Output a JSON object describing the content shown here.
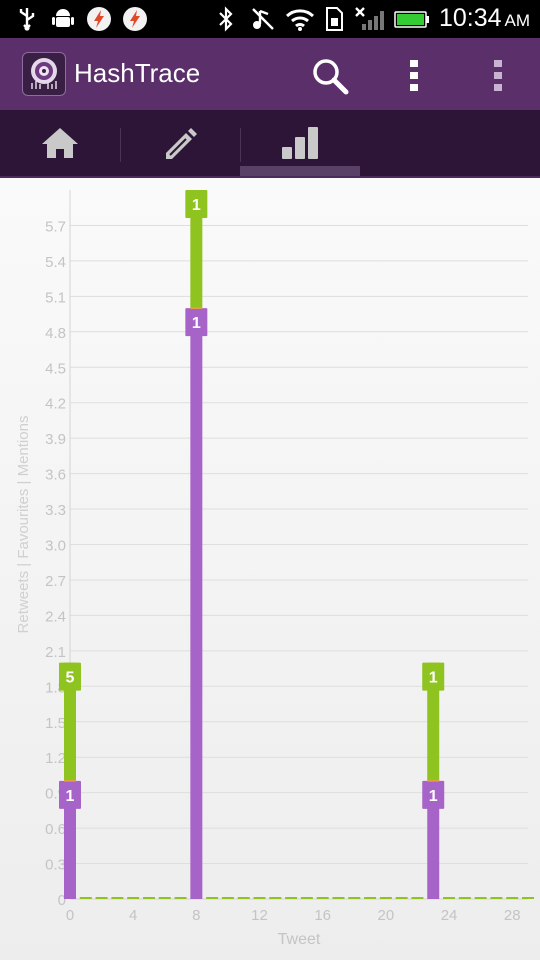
{
  "status_bar": {
    "time": "10:34",
    "ampm": "AM",
    "icons": [
      "usb-icon",
      "android-debug-icon",
      "flash-icon",
      "flash-icon",
      "bluetooth-icon",
      "mute-icon",
      "wifi-icon",
      "sim-icon",
      "signal-icon",
      "battery-icon"
    ]
  },
  "app_bar": {
    "title": "HashTrace",
    "actions": [
      "search-icon",
      "overflow-menu-icon",
      "overflow-menu-icon"
    ]
  },
  "tabs": [
    {
      "icon": "home-icon",
      "selected": false
    },
    {
      "icon": "edit-icon",
      "selected": false
    },
    {
      "icon": "bar-chart-icon",
      "selected": true
    }
  ],
  "colors": {
    "purple": "#a764c8",
    "green": "#8fc31f",
    "bar_text": "#ffffff",
    "axis_text": "#c4c4c4"
  },
  "chart_data": {
    "type": "bar",
    "stacked": true,
    "xlabel": "Tweet",
    "ylabel": "Retweets | Favourites | Mentions",
    "xlim": [
      0,
      29
    ],
    "ylim": [
      0,
      6
    ],
    "x_ticks": [
      "0",
      "4",
      "8",
      "12",
      "16",
      "20",
      "24",
      "28"
    ],
    "y_ticks": [
      "0",
      "0.3",
      "0.6",
      "0.9",
      "1.2",
      "1.5",
      "1.8",
      "2.1",
      "2.4",
      "2.7",
      "3.0",
      "3.3",
      "3.6",
      "3.9",
      "4.2",
      "4.5",
      "4.8",
      "5.1",
      "5.4",
      "5.7"
    ],
    "grid": true,
    "x": [
      0,
      8,
      23
    ],
    "series": [
      {
        "color": "#a764c8",
        "values": [
          1,
          5,
          1
        ]
      },
      {
        "color": "#8fc31f",
        "values": [
          1,
          1,
          1
        ]
      }
    ],
    "labels": [
      "1",
      "5",
      "1",
      "1",
      "1",
      "1"
    ]
  }
}
